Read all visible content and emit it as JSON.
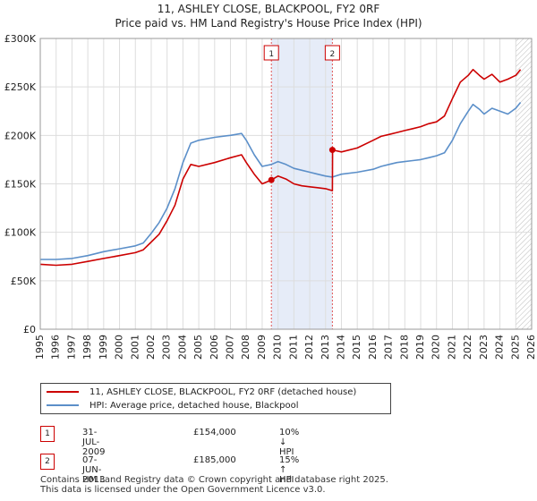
{
  "title_line1": "11, ASHLEY CLOSE, BLACKPOOL, FY2 0RF",
  "title_line2": "Price paid vs. HM Land Registry's House Price Index (HPI)",
  "chart_data": {
    "type": "line",
    "title": "11, ASHLEY CLOSE, BLACKPOOL, FY2 0RF — Price paid vs. HM Land Registry's House Price Index (HPI)",
    "xlabel": "",
    "ylabel": "",
    "xlim": [
      1995,
      2026
    ],
    "ylim": [
      0,
      300000
    ],
    "x_ticks": [
      "1995",
      "1996",
      "1997",
      "1998",
      "1999",
      "2000",
      "2001",
      "2002",
      "2003",
      "2004",
      "2005",
      "2006",
      "2007",
      "2008",
      "2009",
      "2010",
      "2011",
      "2012",
      "2013",
      "2014",
      "2015",
      "2016",
      "2017",
      "2018",
      "2019",
      "2020",
      "2021",
      "2022",
      "2023",
      "2024",
      "2025",
      "2026"
    ],
    "y_ticks": [
      {
        "value": 0,
        "label": "£0"
      },
      {
        "value": 50000,
        "label": "£50K"
      },
      {
        "value": 100000,
        "label": "£100K"
      },
      {
        "value": 150000,
        "label": "£150K"
      },
      {
        "value": 200000,
        "label": "£200K"
      },
      {
        "value": 250000,
        "label": "£250K"
      },
      {
        "value": 300000,
        "label": "£300K"
      }
    ],
    "grid": true,
    "series": [
      {
        "name": "11, ASHLEY CLOSE, BLACKPOOL, FY2 0RF (detached house)",
        "color": "#cc0000",
        "x": [
          1995.0,
          1996.0,
          1997.0,
          1998.0,
          1999.0,
          2000.0,
          2001.0,
          2001.5,
          2002.0,
          2002.5,
          2003.0,
          2003.5,
          2004.0,
          2004.5,
          2005.0,
          2006.0,
          2007.0,
          2007.7,
          2008.0,
          2008.5,
          2009.0,
          2009.58,
          2010.0,
          2010.5,
          2011.0,
          2011.5,
          2012.0,
          2012.5,
          2013.0,
          2013.43,
          2013.44,
          2014.0,
          2015.0,
          2016.0,
          2016.5,
          2017.0,
          2017.5,
          2018.0,
          2018.5,
          2019.0,
          2019.5,
          2020.0,
          2020.5,
          2021.0,
          2021.5,
          2022.0,
          2022.3,
          2022.7,
          2023.0,
          2023.5,
          2024.0,
          2024.5,
          2025.0,
          2025.3
        ],
        "y": [
          67000,
          66000,
          67000,
          70000,
          73000,
          76000,
          79000,
          82000,
          90000,
          98000,
          112000,
          128000,
          155000,
          170000,
          168000,
          172000,
          177000,
          180000,
          172000,
          160000,
          150000,
          154000,
          158000,
          155000,
          150000,
          148000,
          147000,
          146000,
          145000,
          143000,
          185000,
          183000,
          187000,
          195000,
          199000,
          201000,
          203000,
          205000,
          207000,
          209000,
          212000,
          214000,
          220000,
          238000,
          255000,
          262000,
          268000,
          262000,
          258000,
          263000,
          255000,
          258000,
          262000,
          268000
        ]
      },
      {
        "name": "HPI: Average price, detached house, Blackpool",
        "color": "#5b8fc9",
        "x": [
          1995.0,
          1996.0,
          1997.0,
          1998.0,
          1999.0,
          2000.0,
          2001.0,
          2001.5,
          2002.0,
          2002.5,
          2003.0,
          2003.5,
          2004.0,
          2004.5,
          2005.0,
          2006.0,
          2007.0,
          2007.7,
          2008.0,
          2008.5,
          2009.0,
          2009.58,
          2010.0,
          2010.5,
          2011.0,
          2011.5,
          2012.0,
          2012.5,
          2013.0,
          2013.43,
          2014.0,
          2015.0,
          2016.0,
          2016.5,
          2017.0,
          2017.5,
          2018.0,
          2018.5,
          2019.0,
          2019.5,
          2020.0,
          2020.5,
          2021.0,
          2021.5,
          2022.0,
          2022.3,
          2022.7,
          2023.0,
          2023.5,
          2024.0,
          2024.5,
          2025.0,
          2025.3
        ],
        "y": [
          72000,
          72000,
          73000,
          76000,
          80000,
          83000,
          86000,
          89000,
          99000,
          110000,
          125000,
          145000,
          172000,
          192000,
          195000,
          198000,
          200000,
          202000,
          195000,
          180000,
          168000,
          170000,
          173000,
          170000,
          166000,
          164000,
          162000,
          160000,
          158000,
          157000,
          160000,
          162000,
          165000,
          168000,
          170000,
          172000,
          173000,
          174000,
          175000,
          177000,
          179000,
          182000,
          195000,
          212000,
          225000,
          232000,
          227000,
          222000,
          228000,
          225000,
          222000,
          228000,
          234000
        ]
      }
    ],
    "highlight_period": {
      "start": 2009.58,
      "end": 2013.43
    },
    "forecast_start": 2025.0,
    "markers": [
      {
        "label": "1",
        "x": 2009.58,
        "y": 154000
      },
      {
        "label": "2",
        "x": 2013.43,
        "y": 185000
      }
    ]
  },
  "legend": {
    "property_label": "11, ASHLEY CLOSE, BLACKPOOL, FY2 0RF (detached house)",
    "hpi_label": "HPI: Average price, detached house, Blackpool",
    "property_color": "#cc0000",
    "hpi_color": "#5b8fc9"
  },
  "transactions": [
    {
      "num": "1",
      "date": "31-JUL-2009",
      "price": "£154,000",
      "hpi_change": "10% ↓ HPI"
    },
    {
      "num": "2",
      "date": "07-JUN-2013",
      "price": "£185,000",
      "hpi_change": "15% ↑ HPI"
    }
  ],
  "footer": {
    "line1": "Contains HM Land Registry data © Crown copyright and database right 2025.",
    "line2": "This data is licensed under the Open Government Licence v3.0."
  }
}
